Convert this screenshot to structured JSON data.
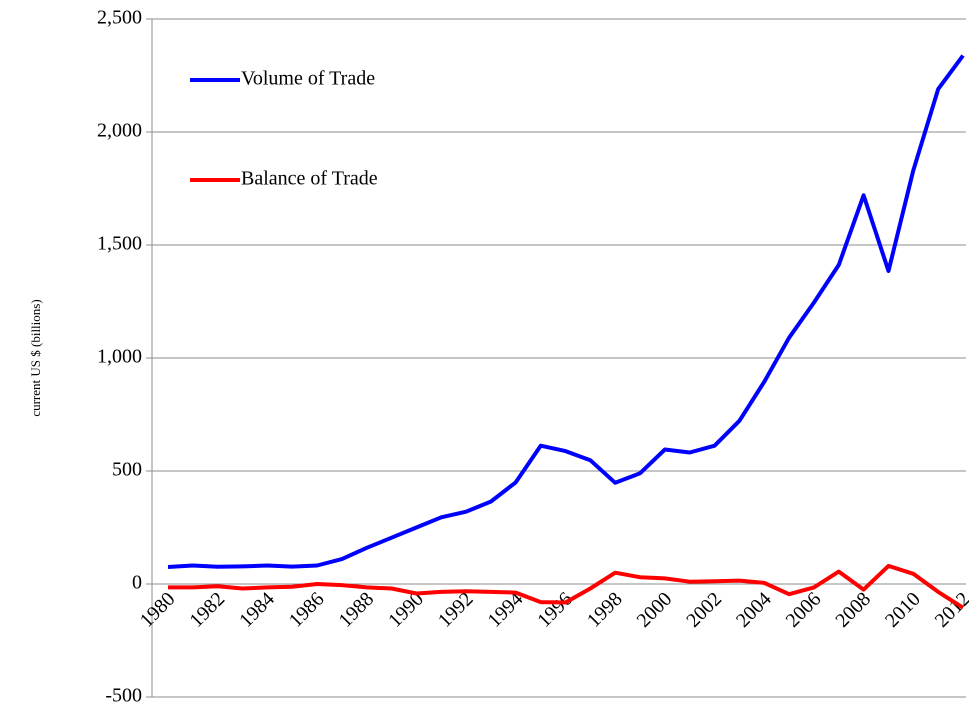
{
  "chart_data": {
    "type": "line",
    "y_label": "current US $ (billions)",
    "categories": [
      "1980",
      null,
      "1982",
      null,
      "1984",
      null,
      "1986",
      null,
      "1988",
      null,
      "1990",
      null,
      "1992",
      null,
      "1994",
      null,
      "1996",
      null,
      "1998",
      null,
      "2000",
      null,
      "2002",
      null,
      "2004",
      null,
      "2006",
      null,
      "2008",
      null,
      "2010",
      null,
      "2012"
    ],
    "series": [
      {
        "name": "Volume of Trade",
        "color": "#0000ff",
        "values": [
          75,
          82,
          76,
          78,
          82,
          77,
          82,
          110,
          160,
          205,
          250,
          295,
          320,
          365,
          450,
          612,
          588,
          548,
          448,
          490,
          595,
          582,
          612,
          722,
          895,
          1090,
          1245,
          1412,
          1720,
          1385,
          1830,
          2190,
          2338
        ]
      },
      {
        "name": "Balance of Trade",
        "color": "#ff0000",
        "values": [
          -15,
          -15,
          -10,
          -20,
          -15,
          -12,
          0,
          -5,
          -15,
          -20,
          -42,
          -35,
          -32,
          -35,
          -38,
          -80,
          -82,
          -20,
          50,
          30,
          25,
          10,
          12,
          15,
          5,
          -45,
          -15,
          55,
          -25,
          80,
          45,
          -35,
          -105
        ]
      }
    ],
    "ylim": [
      -500,
      2500
    ],
    "yticks": [
      -500,
      0,
      500,
      {
        "value": 1000,
        "label": "1,000"
      },
      {
        "value": 1500,
        "label": "1,500"
      },
      {
        "value": 2000,
        "label": "2,000"
      },
      {
        "value": 2500,
        "label": "2,500"
      }
    ],
    "grid": true,
    "legend": "upper-left"
  }
}
